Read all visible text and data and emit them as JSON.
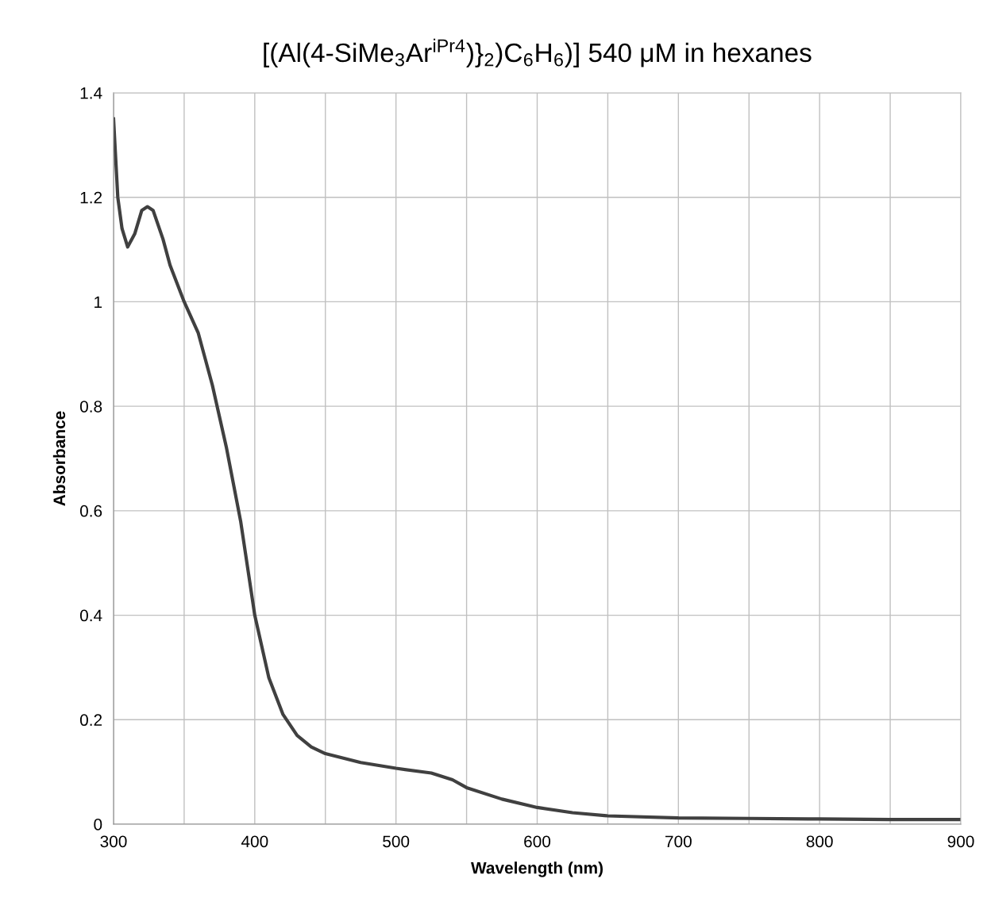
{
  "chart_data": {
    "type": "line",
    "title": "[(Al(4-SiMe$_{3}$Ar$^{iPr4}$)}$_{2}$)C$_{6}$H$_{6}$)] 540 μM in hexanes",
    "xlabel": "Wavelength (nm)",
    "ylabel": "Absorbance",
    "x": [
      300,
      303,
      306,
      310,
      315,
      320,
      324,
      328,
      335,
      340,
      350,
      360,
      370,
      380,
      390,
      400,
      410,
      420,
      430,
      440,
      450,
      475,
      500,
      525,
      540,
      550,
      575,
      600,
      625,
      650,
      700,
      750,
      800,
      850,
      900
    ],
    "series": [
      {
        "color": "#404040",
        "values": [
          1.35,
          1.2,
          1.14,
          1.105,
          1.13,
          1.175,
          1.182,
          1.175,
          1.12,
          1.07,
          1.0,
          0.94,
          0.84,
          0.72,
          0.58,
          0.4,
          0.28,
          0.21,
          0.17,
          0.148,
          0.135,
          0.118,
          0.107,
          0.098,
          0.085,
          0.07,
          0.048,
          0.032,
          0.022,
          0.016,
          0.012,
          0.011,
          0.01,
          0.009,
          0.009
        ]
      }
    ],
    "xlim": [
      300,
      900
    ],
    "ylim": [
      0,
      1.4
    ],
    "xticks": [
      300,
      {
        "value": 350,
        "label": null
      },
      400,
      {
        "value": 450,
        "label": null
      },
      500,
      {
        "value": 550,
        "label": null
      },
      600,
      {
        "value": 650,
        "label": null
      },
      700,
      {
        "value": 750,
        "label": null
      },
      800,
      {
        "value": 850,
        "label": null
      },
      900
    ],
    "yticks": [
      0,
      0.2,
      0.4,
      0.6,
      0.8,
      1,
      1.2,
      1.4
    ],
    "grid": true,
    "legend": false,
    "marker": "none",
    "line_style": "solid"
  }
}
